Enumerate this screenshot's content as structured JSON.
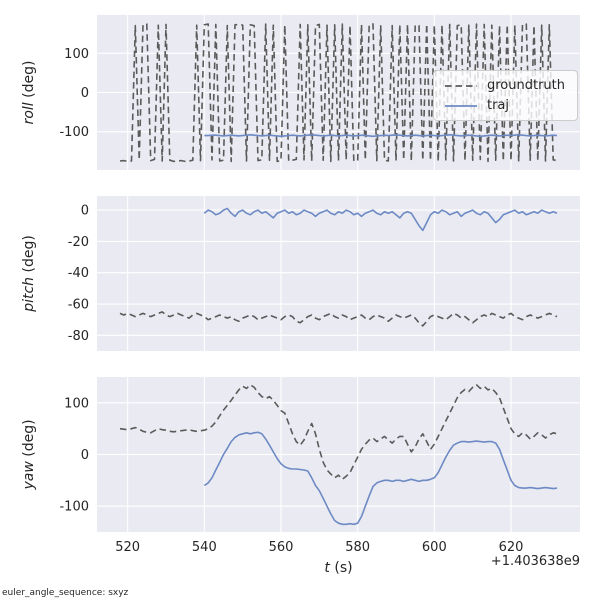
{
  "figure": {
    "bg": "#ffffff",
    "axes_bg": "#eaeaf2",
    "grid": "#ffffff",
    "text": "#262626"
  },
  "legend": {
    "entries": [
      {
        "label": "groundtruth",
        "color": "#5a5a5a",
        "dash": true
      },
      {
        "label": "traj",
        "color": "#6d8ac4",
        "dash": false
      }
    ]
  },
  "xaxis": {
    "label_var": "t",
    "label_unit": " (s)",
    "offset_text": "+1.403638e9",
    "ticks": [
      520,
      540,
      560,
      580,
      600,
      620
    ],
    "lim": [
      512,
      638
    ]
  },
  "footer": {
    "note": "euler_angle_sequence: sxyz"
  },
  "chart_data": [
    {
      "type": "line",
      "ylabel_var": "roll",
      "ylabel_unit": " (deg)",
      "ylim": [
        -198,
        198
      ],
      "yticks": [
        100,
        0,
        -100
      ],
      "series": [
        {
          "name": "groundtruth",
          "x0": 518,
          "dx": 1,
          "y": [
            -175,
            -174,
            -176,
            -175,
            171,
            -172,
            173,
            175,
            -174,
            -171,
            172,
            -175,
            174,
            -173,
            -176,
            -175,
            -174,
            -176,
            -175,
            -173,
            172,
            -174,
            173,
            175,
            -172,
            174,
            -175,
            -173,
            171,
            -176,
            173,
            174,
            172,
            -175,
            173,
            171,
            -174,
            -172,
            175,
            -173,
            172,
            -176,
            -174,
            172,
            -175,
            -173,
            -171,
            174,
            -172,
            173,
            -175,
            171,
            174,
            -173,
            172,
            -176,
            173,
            -174,
            175,
            -172,
            171,
            -175,
            -173,
            174,
            -172,
            173,
            175,
            -174,
            172,
            -173,
            -175,
            171,
            -174,
            173,
            -172,
            174,
            -175,
            172,
            171,
            -173,
            175,
            -174,
            172,
            -176,
            173,
            -172,
            174,
            -175,
            171,
            173,
            -174,
            172,
            -173,
            175,
            -171,
            174,
            -176,
            172,
            -173,
            171,
            -175,
            173,
            -174,
            172,
            -176,
            174,
            175,
            -173,
            171,
            -174,
            172,
            -175,
            173,
            -172,
            -174
          ]
        },
        {
          "name": "traj",
          "x0": 540,
          "dx": 1,
          "y": [
            -110,
            -110,
            -109,
            -109,
            -110,
            -111,
            -110,
            -109,
            -110,
            -111,
            -110,
            -109,
            -108,
            -109,
            -110,
            -111,
            -110,
            -109,
            -110,
            -111,
            -112,
            -111,
            -110,
            -109,
            -110,
            -111,
            -110,
            -109,
            -108,
            -109,
            -110,
            -111,
            -110,
            -109,
            -110,
            -111,
            -110,
            -109,
            -110,
            -111,
            -110,
            -109,
            -110,
            -111,
            -112,
            -111,
            -110,
            -109,
            -110,
            -109,
            -108,
            -109,
            -110,
            -111,
            -110,
            -109,
            -110,
            -111,
            -110,
            -109,
            -110,
            -111,
            -110,
            -109,
            -108,
            -109,
            -110,
            -111,
            -110,
            -109,
            -110,
            -111,
            -112,
            -111,
            -110,
            -109,
            -110,
            -111,
            -110,
            -109,
            -110,
            -109,
            -108,
            -109,
            -110,
            -111,
            -110,
            -109,
            -110,
            -111,
            -110,
            -109,
            -110
          ]
        }
      ]
    },
    {
      "type": "line",
      "ylabel_var": "pitch",
      "ylabel_unit": " (deg)",
      "ylim": [
        -90,
        9
      ],
      "yticks": [
        0,
        -20,
        -40,
        -60,
        -80
      ],
      "series": [
        {
          "name": "groundtruth",
          "x0": 518,
          "dx": 1,
          "y": [
            -66,
            -67,
            -66,
            -67,
            -68,
            -67,
            -66,
            -67,
            -68,
            -67,
            -66,
            -65,
            -67,
            -68,
            -67,
            -66,
            -67,
            -68,
            -69,
            -67,
            -66,
            -67,
            -68,
            -70,
            -69,
            -68,
            -67,
            -68,
            -69,
            -68,
            -70,
            -71,
            -69,
            -68,
            -67,
            -68,
            -70,
            -69,
            -68,
            -67,
            -68,
            -69,
            -70,
            -68,
            -67,
            -68,
            -71,
            -72,
            -70,
            -68,
            -67,
            -69,
            -70,
            -68,
            -67,
            -66,
            -68,
            -69,
            -67,
            -68,
            -70,
            -69,
            -68,
            -67,
            -69,
            -70,
            -68,
            -67,
            -68,
            -69,
            -71,
            -69,
            -67,
            -68,
            -69,
            -68,
            -67,
            -69,
            -72,
            -74,
            -71,
            -68,
            -67,
            -68,
            -69,
            -70,
            -68,
            -66,
            -67,
            -69,
            -68,
            -70,
            -72,
            -70,
            -68,
            -67,
            -68,
            -66,
            -67,
            -68,
            -69,
            -67,
            -66,
            -68,
            -69,
            -70,
            -68,
            -67,
            -68,
            -69,
            -68,
            -67,
            -66,
            -67,
            -68
          ]
        },
        {
          "name": "traj",
          "x0": 540,
          "dx": 1,
          "y": [
            -2,
            0,
            -1,
            -3,
            -2,
            0,
            1,
            -2,
            -4,
            -1,
            0,
            -2,
            -3,
            -1,
            0,
            -2,
            -1,
            -3,
            -5,
            -2,
            -1,
            0,
            -2,
            -1,
            -3,
            -2,
            0,
            -1,
            -2,
            -4,
            -2,
            -1,
            0,
            -2,
            -3,
            -1,
            -2,
            0,
            -1,
            -3,
            -2,
            -4,
            -2,
            -1,
            0,
            -2,
            -3,
            -1,
            -2,
            -1,
            -3,
            -5,
            -2,
            -1,
            -2,
            -6,
            -10,
            -13,
            -8,
            -3,
            -1,
            -2,
            0,
            -1,
            -3,
            -2,
            -1,
            -4,
            -2,
            -1,
            0,
            -2,
            -3,
            -1,
            -2,
            -5,
            -8,
            -6,
            -3,
            -2,
            -1,
            0,
            -2,
            -1,
            -3,
            -2,
            -1,
            -2,
            0,
            -1,
            -2,
            -1,
            -2
          ]
        }
      ]
    },
    {
      "type": "line",
      "ylabel_var": "yaw",
      "ylabel_unit": " (deg)",
      "ylim": [
        -150,
        150
      ],
      "yticks": [
        100,
        0,
        -100
      ],
      "series": [
        {
          "name": "groundtruth",
          "x0": 518,
          "dx": 1,
          "y": [
            50,
            49,
            48,
            50,
            52,
            49,
            45,
            43,
            42,
            46,
            50,
            48,
            47,
            45,
            44,
            45,
            46,
            47,
            48,
            46,
            45,
            46,
            47,
            50,
            55,
            63,
            75,
            86,
            95,
            105,
            115,
            125,
            132,
            128,
            135,
            130,
            120,
            112,
            108,
            112,
            105,
            95,
            85,
            80,
            60,
            40,
            25,
            18,
            28,
            45,
            60,
            40,
            10,
            -15,
            -30,
            -38,
            -45,
            -40,
            -48,
            -42,
            -35,
            -20,
            -5,
            10,
            20,
            28,
            32,
            25,
            30,
            35,
            28,
            22,
            30,
            35,
            35,
            20,
            5,
            15,
            30,
            40,
            25,
            10,
            20,
            35,
            50,
            65,
            80,
            95,
            110,
            120,
            126,
            122,
            130,
            135,
            128,
            132,
            125,
            128,
            120,
            110,
            90,
            70,
            50,
            40,
            35,
            42,
            38,
            30,
            35,
            42,
            38,
            32,
            38,
            42,
            40
          ]
        },
        {
          "name": "traj",
          "x0": 540,
          "dx": 1,
          "y": [
            -60,
            -55,
            -45,
            -30,
            -15,
            0,
            12,
            25,
            33,
            38,
            40,
            42,
            40,
            42,
            43,
            40,
            30,
            18,
            5,
            -8,
            -18,
            -24,
            -27,
            -28,
            -28,
            -29,
            -30,
            -32,
            -45,
            -60,
            -70,
            -85,
            -100,
            -115,
            -128,
            -133,
            -135,
            -135,
            -134,
            -135,
            -133,
            -120,
            -100,
            -80,
            -62,
            -55,
            -52,
            -50,
            -50,
            -52,
            -50,
            -50,
            -52,
            -50,
            -48,
            -50,
            -52,
            -50,
            -50,
            -48,
            -45,
            -35,
            -20,
            -5,
            8,
            18,
            22,
            25,
            25,
            24,
            25,
            26,
            25,
            24,
            25,
            25,
            22,
            10,
            -10,
            -30,
            -50,
            -60,
            -64,
            -65,
            -65,
            -64,
            -65,
            -66,
            -65,
            -64,
            -65,
            -66,
            -65
          ]
        }
      ]
    }
  ]
}
